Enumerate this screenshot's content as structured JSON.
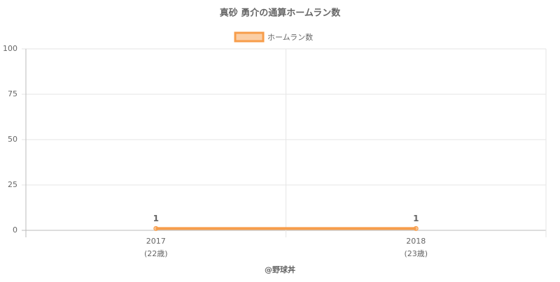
{
  "chart_data": {
    "type": "line",
    "title": "真砂 勇介の通算ホームラン数",
    "categories": [
      [
        "2017",
        "(22歳)"
      ],
      [
        "2018",
        "(23歳)"
      ]
    ],
    "series": [
      {
        "name": "ホームラン数",
        "color": "#f79d4b",
        "values": [
          1,
          1
        ]
      }
    ],
    "ylim": [
      0,
      100
    ],
    "yticks": [
      0,
      25,
      50,
      75,
      100
    ],
    "grid": true,
    "legend": "top",
    "footer": "@野球丼"
  }
}
